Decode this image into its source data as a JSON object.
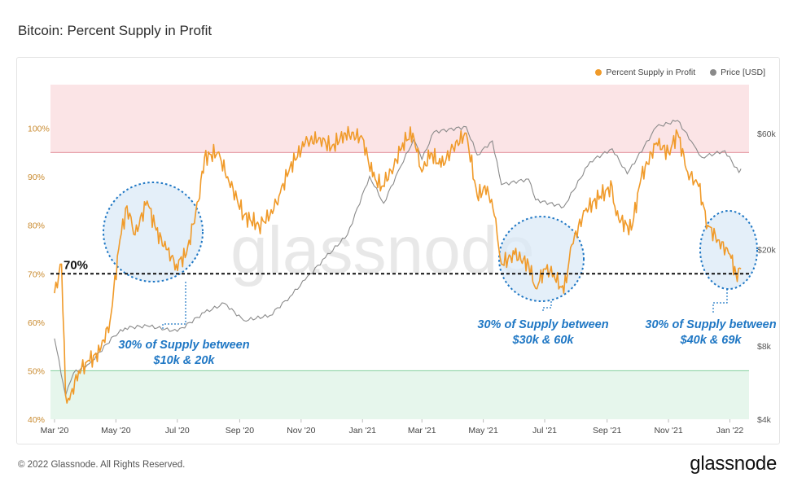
{
  "title": "Bitcoin: Percent Supply in Profit",
  "legend": {
    "profit_label": "Percent Supply in Profit",
    "price_label": "Price [USD]"
  },
  "colors": {
    "profit": "#f09a29",
    "price": "#8a8a8a",
    "red_band": "#fbe4e6",
    "green_band": "#e6f6ec",
    "circle_fill": "#dbe9f7",
    "circle_stroke": "#1f77c4",
    "annotation": "#1f77c4"
  },
  "watermark": "glassnode",
  "footer": {
    "copyright": "© 2022 Glassnode. All Rights Reserved.",
    "logo": "glassnode"
  },
  "chart_data": {
    "type": "line",
    "x_ticks": [
      "Mar '20",
      "May '20",
      "Jul '20",
      "Sep '20",
      "Nov '20",
      "Jan '21",
      "Mar '21",
      "May '21",
      "Jul '21",
      "Sep '21",
      "Nov '21",
      "Jan '22"
    ],
    "y_left_ticks": [
      "40%",
      "50%",
      "60%",
      "70%",
      "80%",
      "90%",
      "100%"
    ],
    "y_right_ticks": [
      "$4k",
      "$8k",
      "$20k",
      "$60k"
    ],
    "y_left_range": [
      0.4,
      1.1
    ],
    "y_right_log": true,
    "y_right_range": [
      4000,
      100000
    ],
    "bands": [
      {
        "from": 0.95,
        "to": 1.09,
        "color": "red"
      },
      {
        "from": 0.4,
        "to": 0.5,
        "color": "green"
      }
    ],
    "threshold": {
      "value": 0.7,
      "label": "70%"
    },
    "series": [
      {
        "name": "Percent Supply in Profit",
        "points": [
          [
            "2020-03-01",
            0.66
          ],
          [
            "2020-03-08",
            0.72
          ],
          [
            "2020-03-12",
            0.45
          ],
          [
            "2020-03-16",
            0.44
          ],
          [
            "2020-03-25",
            0.5
          ],
          [
            "2020-04-05",
            0.52
          ],
          [
            "2020-04-15",
            0.54
          ],
          [
            "2020-04-25",
            0.6
          ],
          [
            "2020-05-05",
            0.77
          ],
          [
            "2020-05-12",
            0.84
          ],
          [
            "2020-05-20",
            0.78
          ],
          [
            "2020-06-01",
            0.85
          ],
          [
            "2020-06-10",
            0.79
          ],
          [
            "2020-06-20",
            0.75
          ],
          [
            "2020-06-30",
            0.72
          ],
          [
            "2020-07-10",
            0.74
          ],
          [
            "2020-07-22",
            0.85
          ],
          [
            "2020-07-28",
            0.94
          ],
          [
            "2020-08-10",
            0.95
          ],
          [
            "2020-08-20",
            0.9
          ],
          [
            "2020-09-05",
            0.82
          ],
          [
            "2020-09-20",
            0.8
          ],
          [
            "2020-10-01",
            0.82
          ],
          [
            "2020-10-10",
            0.86
          ],
          [
            "2020-10-21",
            0.92
          ],
          [
            "2020-11-05",
            0.97
          ],
          [
            "2020-11-20",
            0.98
          ],
          [
            "2020-12-01",
            0.96
          ],
          [
            "2020-12-15",
            0.99
          ],
          [
            "2021-01-01",
            0.98
          ],
          [
            "2021-01-11",
            0.9
          ],
          [
            "2021-01-20",
            0.88
          ],
          [
            "2021-02-01",
            0.92
          ],
          [
            "2021-02-10",
            0.97
          ],
          [
            "2021-02-20",
            0.99
          ],
          [
            "2021-03-01",
            0.91
          ],
          [
            "2021-03-10",
            0.95
          ],
          [
            "2021-03-20",
            0.92
          ],
          [
            "2021-04-01",
            0.96
          ],
          [
            "2021-04-14",
            0.99
          ],
          [
            "2021-04-25",
            0.86
          ],
          [
            "2021-05-05",
            0.88
          ],
          [
            "2021-05-12",
            0.82
          ],
          [
            "2021-05-19",
            0.72
          ],
          [
            "2021-06-01",
            0.74
          ],
          [
            "2021-06-15",
            0.72
          ],
          [
            "2021-06-22",
            0.67
          ],
          [
            "2021-07-01",
            0.71
          ],
          [
            "2021-07-10",
            0.7
          ],
          [
            "2021-07-20",
            0.66
          ],
          [
            "2021-07-28",
            0.76
          ],
          [
            "2021-08-10",
            0.83
          ],
          [
            "2021-08-25",
            0.86
          ],
          [
            "2021-09-06",
            0.88
          ],
          [
            "2021-09-10",
            0.82
          ],
          [
            "2021-09-25",
            0.79
          ],
          [
            "2021-10-05",
            0.9
          ],
          [
            "2021-10-20",
            0.97
          ],
          [
            "2021-11-01",
            0.95
          ],
          [
            "2021-11-10",
            0.99
          ],
          [
            "2021-11-20",
            0.91
          ],
          [
            "2021-12-01",
            0.88
          ],
          [
            "2021-12-10",
            0.8
          ],
          [
            "2021-12-20",
            0.77
          ],
          [
            "2022-01-01",
            0.74
          ],
          [
            "2022-01-07",
            0.7
          ],
          [
            "2022-01-12",
            0.71
          ]
        ]
      },
      {
        "name": "Price [USD]",
        "points": [
          [
            "2020-03-01",
            8600
          ],
          [
            "2020-03-12",
            5000
          ],
          [
            "2020-03-20",
            6200
          ],
          [
            "2020-04-05",
            6800
          ],
          [
            "2020-04-29",
            8800
          ],
          [
            "2020-05-10",
            9500
          ],
          [
            "2020-06-01",
            9700
          ],
          [
            "2020-07-01",
            9200
          ],
          [
            "2020-07-28",
            11000
          ],
          [
            "2020-08-17",
            12000
          ],
          [
            "2020-09-05",
            10200
          ],
          [
            "2020-10-01",
            10700
          ],
          [
            "2020-10-21",
            12800
          ],
          [
            "2020-11-05",
            15000
          ],
          [
            "2020-11-25",
            18500
          ],
          [
            "2020-12-17",
            23000
          ],
          [
            "2021-01-08",
            40000
          ],
          [
            "2021-01-22",
            31000
          ],
          [
            "2021-02-08",
            44000
          ],
          [
            "2021-02-21",
            57000
          ],
          [
            "2021-03-01",
            47000
          ],
          [
            "2021-03-13",
            61000
          ],
          [
            "2021-04-14",
            64000
          ],
          [
            "2021-04-25",
            49000
          ],
          [
            "2021-05-10",
            56000
          ],
          [
            "2021-05-19",
            37000
          ],
          [
            "2021-06-15",
            39000
          ],
          [
            "2021-06-22",
            32000
          ],
          [
            "2021-07-20",
            30000
          ],
          [
            "2021-08-15",
            46000
          ],
          [
            "2021-09-06",
            52000
          ],
          [
            "2021-09-21",
            41000
          ],
          [
            "2021-10-20",
            64000
          ],
          [
            "2021-11-10",
            68000
          ],
          [
            "2021-11-26",
            54000
          ],
          [
            "2021-12-04",
            48000
          ],
          [
            "2021-12-27",
            51000
          ],
          [
            "2022-01-10",
            41500
          ],
          [
            "2022-01-12",
            43000
          ]
        ]
      }
    ],
    "annotations": [
      {
        "text_lines": [
          "30% of Supply between",
          "$10k & 20k"
        ]
      },
      {
        "text_lines": [
          "30% of Supply between",
          "$30k & 60k"
        ]
      },
      {
        "text_lines": [
          "30% of Supply between",
          "$40k & 69k"
        ]
      }
    ]
  }
}
